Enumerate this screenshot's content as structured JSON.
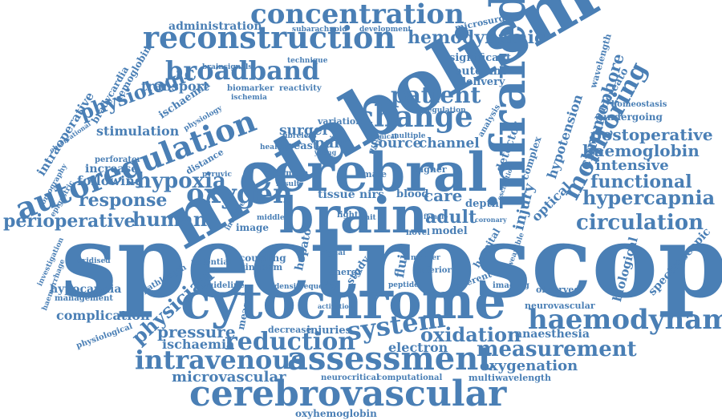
{
  "colors": {
    "word": "#4a7fb5",
    "background": "#ffffff"
  },
  "words": [
    {
      "text": "spectroscopy",
      "rank": 1
    },
    {
      "text": "metabolism",
      "rank": 2
    },
    {
      "text": "cerebral",
      "rank": 3
    },
    {
      "text": "cytochrome",
      "rank": 4
    },
    {
      "text": "infrared",
      "rank": 5
    },
    {
      "text": "brain",
      "rank": 6
    },
    {
      "text": "cerebrovascular",
      "rank": 7
    },
    {
      "text": "reconstruction",
      "rank": 8
    },
    {
      "text": "autoregulation",
      "rank": 9
    },
    {
      "text": "assessment",
      "rank": 10
    },
    {
      "text": "concentration",
      "rank": 11
    },
    {
      "text": "broadband",
      "rank": 12
    },
    {
      "text": "monitoring",
      "rank": 13
    },
    {
      "text": "change",
      "rank": 14
    },
    {
      "text": "haemodynamic",
      "rank": 15
    },
    {
      "text": "oxygen",
      "rank": 16
    },
    {
      "text": "intravenous",
      "rank": 17
    },
    {
      "text": "reduction",
      "rank": 18
    },
    {
      "text": "measurement",
      "rank": 19
    },
    {
      "text": "patient",
      "rank": 20
    },
    {
      "text": "hemodynamic",
      "rank": 21
    },
    {
      "text": "hypoxia",
      "rank": 22
    },
    {
      "text": "human",
      "rank": 23
    },
    {
      "text": "perioperative",
      "rank": 24
    },
    {
      "text": "response",
      "rank": 25
    },
    {
      "text": "circulation",
      "rank": 26
    },
    {
      "text": "hypercapnia",
      "rank": 27
    },
    {
      "text": "functional",
      "rank": 28
    },
    {
      "text": "oxidation",
      "rank": 29
    },
    {
      "text": "system",
      "rank": 30
    },
    {
      "text": "haemoglobin",
      "rank": 31
    },
    {
      "text": "postoperative",
      "rank": 32
    },
    {
      "text": "intensive",
      "rank": 33
    },
    {
      "text": "physiologic",
      "rank": 34
    },
    {
      "text": "physician",
      "rank": 35
    },
    {
      "text": "oxygenation",
      "rank": 36
    },
    {
      "text": "microvascular",
      "rank": 37
    },
    {
      "text": "pressure",
      "rank": 38
    },
    {
      "text": "complication",
      "rank": 39
    },
    {
      "text": "chromophore",
      "rank": 40
    },
    {
      "text": "hypotension",
      "rank": 41
    },
    {
      "text": "injury",
      "rank": 42
    },
    {
      "text": "optical",
      "rank": 43
    },
    {
      "text": "adult",
      "rank": 44
    },
    {
      "text": "care",
      "rank": 45
    },
    {
      "text": "source",
      "rank": 46
    },
    {
      "text": "channel",
      "rank": 47
    },
    {
      "text": "pain",
      "rank": 48
    },
    {
      "text": "surgery",
      "rank": 49
    },
    {
      "text": "ischaemia",
      "rank": 50
    },
    {
      "text": "anaesthesia",
      "rank": 51
    },
    {
      "text": "electron",
      "rank": 52
    },
    {
      "text": "hypocapnia",
      "rank": 53
    },
    {
      "text": "biological",
      "rank": 54
    },
    {
      "text": "spectroscopic",
      "rank": 55
    },
    {
      "text": "neurovascular",
      "rank": 56
    },
    {
      "text": "observed",
      "rank": 57
    },
    {
      "text": "following",
      "rank": 58
    },
    {
      "text": "increase",
      "rank": 59
    },
    {
      "text": "transport",
      "rank": 60
    },
    {
      "text": "stimulation",
      "rank": 61
    },
    {
      "text": "intraoperative",
      "rank": 62
    },
    {
      "text": "administration",
      "rank": 63
    },
    {
      "text": "hemoglobin",
      "rank": 64
    },
    {
      "text": "bradycardia",
      "rank": 65
    },
    {
      "text": "significant",
      "rank": 66
    },
    {
      "text": "outcome",
      "rank": 67
    },
    {
      "text": "delivery",
      "rank": 68
    },
    {
      "text": "pancreato",
      "rank": 69
    },
    {
      "text": "homeostasis",
      "rank": 70
    },
    {
      "text": "undergoing",
      "rank": 71
    },
    {
      "text": "wavelength",
      "rank": 72
    },
    {
      "text": "microsurgery",
      "rank": 73
    },
    {
      "text": "multiwavelength",
      "rank": 74
    },
    {
      "text": "oxyhemoglobin",
      "rank": 75
    },
    {
      "text": "neurocritical",
      "rank": 76
    },
    {
      "text": "computational",
      "rank": 77
    },
    {
      "text": "injuries",
      "rank": 78
    },
    {
      "text": "decrease",
      "rank": 79
    },
    {
      "text": "measure",
      "rank": 80
    },
    {
      "text": "ischaemia",
      "rank": 81
    },
    {
      "text": "tissue",
      "rank": 82
    },
    {
      "text": "nirs",
      "rank": 83
    },
    {
      "text": "blood",
      "rank": 84
    },
    {
      "text": "model",
      "rank": 85
    },
    {
      "text": "image",
      "rank": 86
    },
    {
      "text": "fluid",
      "rank": 87
    },
    {
      "text": "breast",
      "rank": 88
    },
    {
      "text": "detector",
      "rank": 89
    },
    {
      "text": "complex",
      "rank": 90
    },
    {
      "text": "variation",
      "rank": 91
    },
    {
      "text": "biomarker",
      "rank": 92
    },
    {
      "text": "brainsignals",
      "rank": 93
    },
    {
      "text": "technique",
      "rank": 94
    },
    {
      "text": "subarachnoid",
      "rank": 95
    },
    {
      "text": "development",
      "rank": 96
    },
    {
      "text": "guideline",
      "rank": 97
    },
    {
      "text": "pathlength",
      "rank": 98
    },
    {
      "text": "management",
      "rank": 99
    },
    {
      "text": "haemorrhage",
      "rank": 100
    },
    {
      "text": "investigation",
      "rank": 101
    },
    {
      "text": "epigastric",
      "rank": 102
    },
    {
      "text": "tomography",
      "rank": 103
    },
    {
      "text": "perforator",
      "rank": 104
    },
    {
      "text": "distance",
      "rank": 105
    },
    {
      "text": "reactivity",
      "rank": 106
    },
    {
      "text": "analysis",
      "rank": 107
    },
    {
      "text": "depth",
      "rank": 108
    },
    {
      "text": "hospital",
      "rank": 109
    },
    {
      "text": "different",
      "rank": 110
    },
    {
      "text": "imaging",
      "rank": 111
    },
    {
      "text": "inferior",
      "rank": 112
    },
    {
      "text": "peptide",
      "rank": 113
    },
    {
      "text": "frequency",
      "rank": 114
    },
    {
      "text": "oxidised",
      "rank": 115
    },
    {
      "text": "potential",
      "rank": 116
    },
    {
      "text": "coupling",
      "rank": 117
    },
    {
      "text": "kingdom",
      "rank": 118
    },
    {
      "text": "energy",
      "rank": 119
    },
    {
      "text": "hepato",
      "rank": 120
    },
    {
      "text": "study",
      "rank": 121
    },
    {
      "text": "invasive",
      "rank": 122
    },
    {
      "text": "higher",
      "rank": 123
    },
    {
      "text": "multiple",
      "rank": 124
    },
    {
      "text": "clinical",
      "rank": 125
    },
    {
      "text": "formula",
      "rank": 126
    },
    {
      "text": "male",
      "rank": 127
    },
    {
      "text": "density",
      "rank": 128
    },
    {
      "text": "novel",
      "rank": 129
    },
    {
      "text": "light",
      "rank": 130
    },
    {
      "text": "middle",
      "rank": 131
    },
    {
      "text": "healthy",
      "rank": 132
    },
    {
      "text": "fibreless",
      "rank": 133
    },
    {
      "text": "pyruvic",
      "rank": 134
    },
    {
      "text": "physiology",
      "rank": 135
    },
    {
      "text": "ischemia",
      "rank": 136
    },
    {
      "text": "observational",
      "rank": 137
    },
    {
      "text": "result",
      "rank": 138
    },
    {
      "text": "regulation",
      "rank": 139
    },
    {
      "text": "data",
      "rank": 140
    },
    {
      "text": "physiological",
      "rank": 141
    },
    {
      "text": "coronary",
      "rank": 142
    },
    {
      "text": "female",
      "rank": 143
    },
    {
      "text": "oscillation",
      "rank": 144
    },
    {
      "text": "activation",
      "rank": 145
    },
    {
      "text": "wearable",
      "rank": 146
    },
    {
      "text": "young",
      "rank": 147
    },
    {
      "text": "signal",
      "rank": 148
    },
    {
      "text": "marker",
      "rank": 149
    },
    {
      "text": "unit",
      "rank": 150
    }
  ]
}
